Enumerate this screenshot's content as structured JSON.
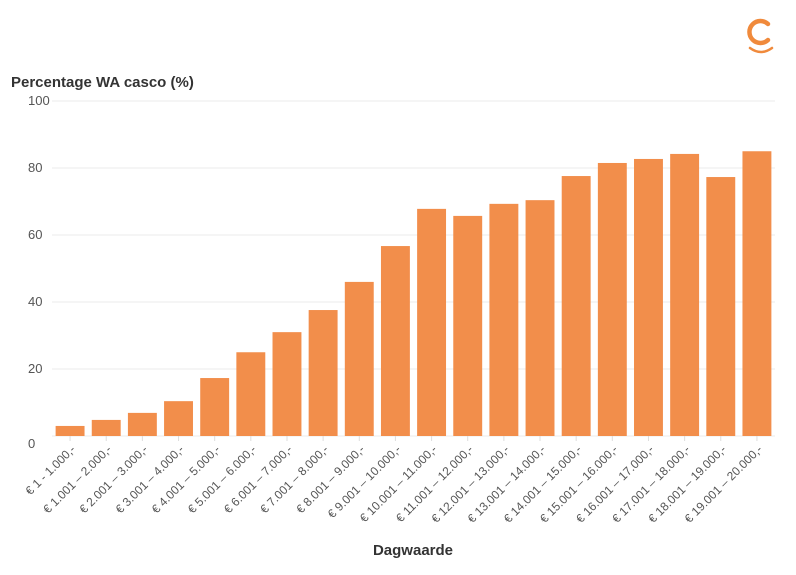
{
  "logo": {
    "name": "c-logo-icon",
    "color": "#f08a3c"
  },
  "chart_data": {
    "type": "bar",
    "title": "Percentage WA casco (%)",
    "xlabel": "Dagwaarde",
    "ylabel": "Percentage WA casco (%)",
    "ylim": [
      0,
      100
    ],
    "yticks": [
      0,
      20,
      40,
      60,
      80,
      100
    ],
    "grid": true,
    "color": "#f28e4b",
    "categories": [
      "€ 1 - 1.000,-",
      "€ 1.001 – 2.000,-",
      "€ 2.001 – 3.000,-",
      "€ 3.001 – 4.000,-",
      "€ 4.001 – 5.000,-",
      "€ 5.001 – 6.000,-",
      "€ 6.001 – 7.000,-",
      "€ 7.001 – 8.000,-",
      "€ 8.001 – 9.000,-",
      "€ 9.001 – 10.000,-",
      "€ 10.001 – 11.000,-",
      "€ 11.001 – 12.000,-",
      "€ 12.001 – 13.000,-",
      "€ 13.001 – 14.000,-",
      "€ 14.001 – 15.000,-",
      "€ 15.001 – 16.000,-",
      "€ 16.001 – 17.000,-",
      "€ 17.001 – 18.000,-",
      "€ 18.001 – 19.000,-",
      "€ 19.001 – 20.000,-"
    ],
    "values": [
      3,
      4.8,
      6.9,
      10.4,
      17.3,
      25,
      31,
      37.6,
      46,
      56.7,
      67.8,
      65.7,
      69.3,
      70.4,
      77.6,
      81.5,
      82.7,
      84.2,
      77.3,
      85
    ]
  }
}
